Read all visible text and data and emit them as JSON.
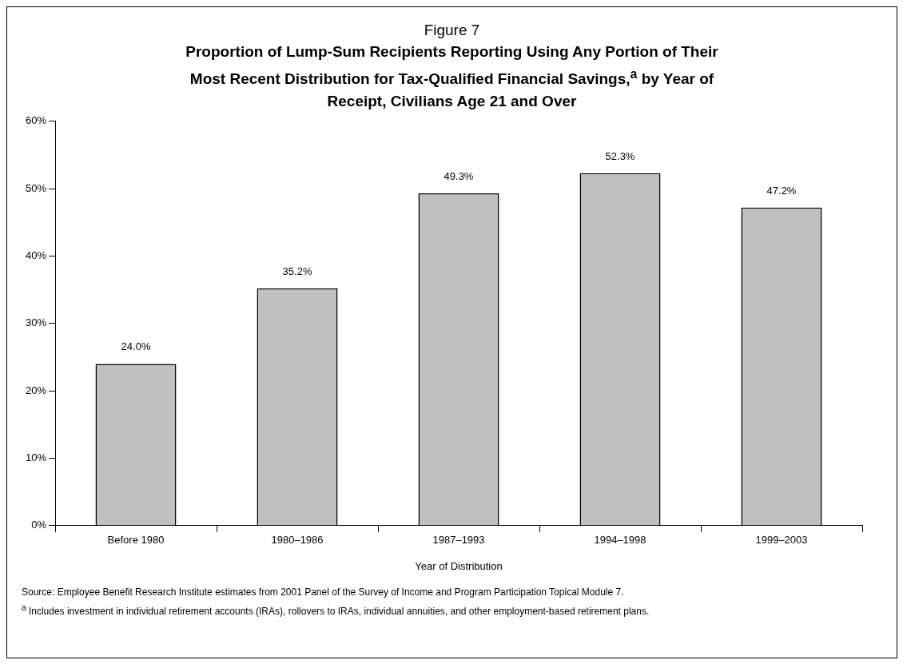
{
  "chart_data": {
    "type": "bar",
    "title": "Figure 7",
    "subtitle": "Proportion of Lump-Sum Recipients Reporting Using Any Portion of Their Most Recent Distribution for Tax-Qualified Financial Savings,$^{a}$ by Year of Receipt, Civilians Age 21 and Over",
    "xlabel": "Year of Distribution",
    "categories": [
      "Before 1980",
      "1980–1986",
      "1987–1993",
      "1994–1998",
      "1999–2003"
    ],
    "values": [
      24.0,
      35.2,
      49.3,
      52.3,
      47.2
    ],
    "value_labels": [
      "24.0%",
      "35.2%",
      "49.3%",
      "52.3%",
      "47.2%"
    ],
    "color": "#c0c0c0",
    "ylim": [
      0,
      60
    ],
    "yticks": [
      {
        "value": 0,
        "label": "0%"
      },
      {
        "value": 10,
        "label": "10%"
      },
      {
        "value": 20,
        "label": "20%"
      },
      {
        "value": 30,
        "label": "30%"
      },
      {
        "value": 40,
        "label": "40%"
      },
      {
        "value": 50,
        "label": "50%"
      },
      {
        "value": 60,
        "label": "60%"
      }
    ],
    "grid": false,
    "legend": false,
    "annotations": [
      "Source: Employee Benefit Research Institute estimates from 2001 Panel of the Survey of Income and Program Participation Topical Module 7.",
      "$^{a}$ Includes investment in individual retirement accounts (IRAs), rollovers to IRAs, individual annuities, and other employment-based retirement plans."
    ]
  }
}
